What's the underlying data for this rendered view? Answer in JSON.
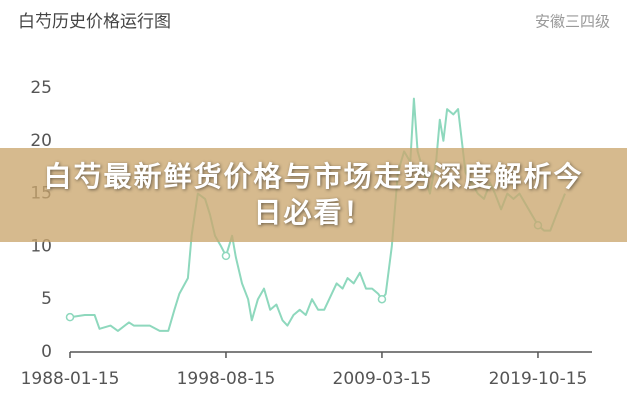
{
  "chart_data": {
    "type": "line",
    "title": "白芍历史价格运行图",
    "subtitle": "安徽三四级",
    "annotation": "白芍最新鲜货价格与市场走势深度解析今日必看！",
    "x": [
      "1988-01-15",
      "1989-01-15",
      "1989-09-15",
      "1990-01-15",
      "1990-10-15",
      "1991-04-15",
      "1992-01-15",
      "1992-05-15",
      "1993-06-15",
      "1994-02-15",
      "1994-09-15",
      "1995-02-15",
      "1995-06-15",
      "1996-01-15",
      "1996-04-15",
      "1996-09-15",
      "1997-03-15",
      "1997-07-15",
      "1997-11-15",
      "1998-04-15",
      "1998-08-15",
      "1999-01-15",
      "1999-04-15",
      "1999-09-15",
      "2000-02-15",
      "2000-05-15",
      "2000-10-15",
      "2001-03-15",
      "2001-08-15",
      "2002-01-15",
      "2002-06-15",
      "2002-10-15",
      "2003-03-15",
      "2003-08-15",
      "2004-01-15",
      "2004-06-15",
      "2004-11-15",
      "2005-04-15",
      "2005-08-15",
      "2006-02-15",
      "2006-07-15",
      "2006-11-15",
      "2007-04-15",
      "2007-09-15",
      "2008-02-15",
      "2008-07-15",
      "2008-12-15",
      "2009-03-15",
      "2009-06-15",
      "2009-11-15",
      "2010-04-15",
      "2010-09-15",
      "2011-02-15",
      "2011-05-15",
      "2011-08-15",
      "2012-01-15",
      "2012-06-15",
      "2012-11-15",
      "2013-02-15",
      "2013-05-15",
      "2013-08-15",
      "2014-01-15",
      "2014-05-15",
      "2014-08-15",
      "2014-11-15",
      "2015-04-15",
      "2015-09-15",
      "2016-02-15",
      "2016-07-15",
      "2016-11-15",
      "2017-04-15",
      "2017-09-15",
      "2018-02-15",
      "2018-07-15",
      "2018-12-15",
      "2019-05-15",
      "2019-10-15",
      "2020-03-15",
      "2020-08-15",
      "2021-01-15",
      "2021-08-15"
    ],
    "values": [
      3.3,
      3.5,
      3.5,
      2.2,
      2.5,
      2.0,
      2.8,
      2.5,
      2.5,
      2.0,
      2.0,
      4.0,
      5.5,
      7.0,
      11.0,
      15.0,
      14.5,
      13.0,
      11.0,
      10.0,
      9.1,
      11.0,
      9.0,
      6.5,
      5.0,
      3.0,
      5.0,
      6.0,
      4.0,
      4.5,
      3.0,
      2.5,
      3.5,
      4.0,
      3.5,
      5.0,
      4.0,
      4.0,
      5.0,
      6.5,
      6.0,
      7.0,
      6.5,
      7.5,
      6.0,
      6.0,
      5.5,
      5.0,
      5.5,
      10.0,
      17.0,
      19.0,
      18.0,
      24.0,
      19.0,
      17.0,
      15.0,
      18.0,
      22.0,
      20.0,
      23.0,
      22.5,
      23.0,
      20.0,
      17.0,
      16.0,
      15.0,
      14.5,
      16.0,
      15.0,
      13.5,
      15.0,
      14.5,
      15.0,
      14.0,
      13.0,
      12.0,
      11.5,
      11.5,
      13.0,
      15.0
    ],
    "color": "#8ed8bd",
    "xlim": [
      "1988-01-15",
      "2023-06-15"
    ],
    "xticks": [
      "1988-01-15",
      "1998-08-15",
      "2009-03-15",
      "2019-10-15"
    ],
    "ylim": [
      0,
      25
    ],
    "yticks": [
      0,
      5,
      10,
      15,
      20,
      25
    ],
    "grid": false
  }
}
